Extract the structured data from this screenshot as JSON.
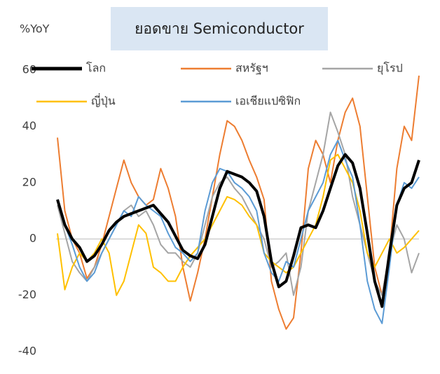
{
  "chart_data": {
    "type": "line",
    "title": "ยอดขาย Semiconductor",
    "y_label": "%YoY",
    "ylim": [
      -40,
      60
    ],
    "yticks": [
      -40,
      -20,
      0,
      20,
      40,
      60
    ],
    "series": [
      {
        "name": "โลก",
        "color": "#000000",
        "values": [
          14,
          5,
          0,
          -3,
          -8,
          -6,
          -2,
          3,
          6,
          8,
          9,
          10,
          11,
          12,
          9,
          6,
          1,
          -4,
          -6,
          -7,
          -2,
          8,
          18,
          24,
          23,
          22,
          20,
          17,
          8,
          -8,
          -17,
          -15,
          -6,
          4,
          5,
          4,
          10,
          18,
          26,
          30,
          27,
          18,
          2,
          -15,
          -24,
          -5,
          12,
          18,
          20,
          28
        ]
      },
      {
        "name": "สหรัฐฯ",
        "color": "#ed7d31",
        "values": [
          36,
          10,
          0,
          -5,
          -14,
          -10,
          -2,
          8,
          18,
          28,
          20,
          15,
          12,
          14,
          25,
          18,
          8,
          -10,
          -22,
          -12,
          0,
          15,
          30,
          42,
          40,
          35,
          28,
          22,
          14,
          -15,
          -25,
          -32,
          -28,
          -5,
          25,
          35,
          30,
          20,
          35,
          45,
          50,
          40,
          15,
          -10,
          -20,
          -5,
          25,
          40,
          35,
          58
        ]
      },
      {
        "name": "ยุโรป",
        "color": "#a5a5a5",
        "values": [
          12,
          2,
          -8,
          -12,
          -15,
          -10,
          -5,
          0,
          5,
          10,
          12,
          8,
          10,
          5,
          -2,
          -5,
          -5,
          -8,
          -10,
          -5,
          5,
          15,
          20,
          22,
          18,
          15,
          10,
          5,
          0,
          -10,
          -8,
          -5,
          -20,
          -10,
          10,
          20,
          30,
          45,
          38,
          30,
          15,
          5,
          -5,
          -15,
          -20,
          -5,
          5,
          0,
          -12,
          -5
        ]
      },
      {
        "name": "ญี่ปุ่น",
        "color": "#ffc000",
        "values": [
          2,
          -18,
          -10,
          -5,
          -8,
          -5,
          0,
          -5,
          -20,
          -15,
          -5,
          5,
          2,
          -10,
          -12,
          -15,
          -15,
          -10,
          -6,
          -3,
          0,
          5,
          10,
          15,
          14,
          12,
          8,
          5,
          -5,
          -8,
          -10,
          -12,
          -10,
          -5,
          0,
          5,
          15,
          28,
          30,
          25,
          20,
          10,
          -5,
          -10,
          -5,
          0,
          -5,
          -3,
          0,
          3
        ]
      },
      {
        "name": "เอเชียแปซิฟิก",
        "color": "#5b9bd5",
        "values": [
          14,
          5,
          -2,
          -10,
          -15,
          -12,
          -5,
          0,
          5,
          10,
          8,
          15,
          12,
          10,
          8,
          2,
          -3,
          -5,
          -8,
          -5,
          10,
          20,
          25,
          24,
          20,
          18,
          15,
          10,
          -5,
          -12,
          -15,
          -8,
          -10,
          0,
          10,
          15,
          20,
          30,
          35,
          28,
          22,
          5,
          -15,
          -25,
          -30,
          -10,
          12,
          20,
          18,
          22
        ]
      }
    ]
  }
}
